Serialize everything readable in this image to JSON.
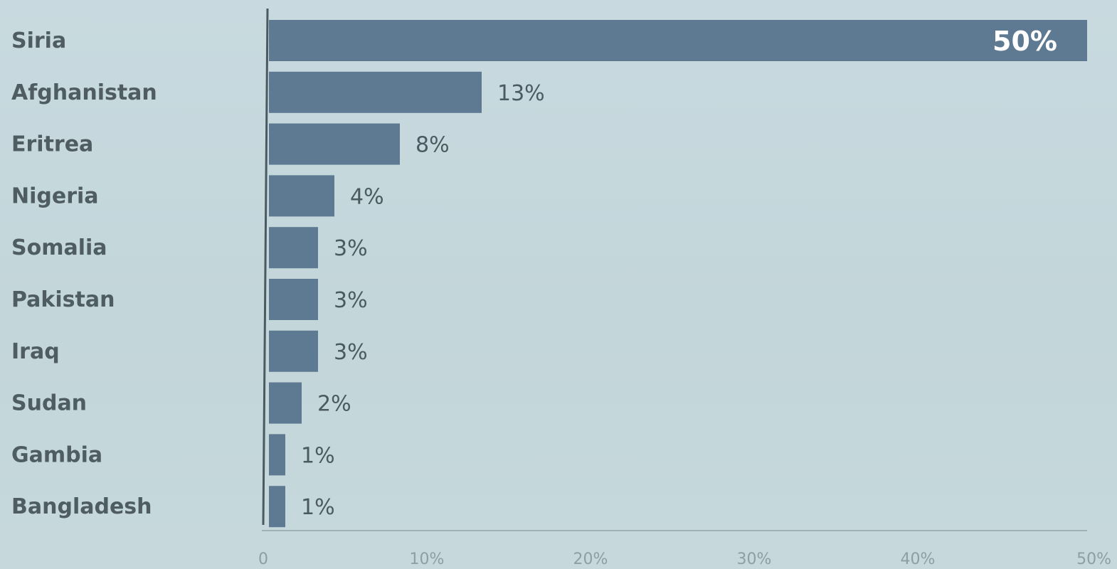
{
  "chart_data": {
    "type": "bar",
    "orientation": "horizontal",
    "categories": [
      "Siria",
      "Afghanistan",
      "Eritrea",
      "Nigeria",
      "Somalia",
      "Pakistan",
      "Iraq",
      "Sudan",
      "Gambia",
      "Bangladesh"
    ],
    "values": [
      50,
      13,
      8,
      4,
      3,
      3,
      3,
      2,
      1,
      1
    ],
    "value_labels": [
      "50%",
      "13%",
      "8%",
      "4%",
      "3%",
      "3%",
      "3%",
      "2%",
      "1%",
      "1%"
    ],
    "xlim": [
      0,
      50
    ],
    "x_ticks": [
      0,
      10,
      20,
      30,
      40,
      50
    ],
    "x_tick_labels": [
      "0",
      "10%",
      "20%",
      "30%",
      "40%",
      "50%"
    ],
    "title": "",
    "xlabel": "",
    "ylabel": "",
    "grid": false,
    "legend": "none",
    "colors": {
      "bar": "#5d7a92",
      "background": "#c5d8dc",
      "category_text": "#4f5d62",
      "value_text": "#4b5a60",
      "inside_value_text": "#ffffff",
      "tick_text": "#8e9ea3"
    }
  }
}
